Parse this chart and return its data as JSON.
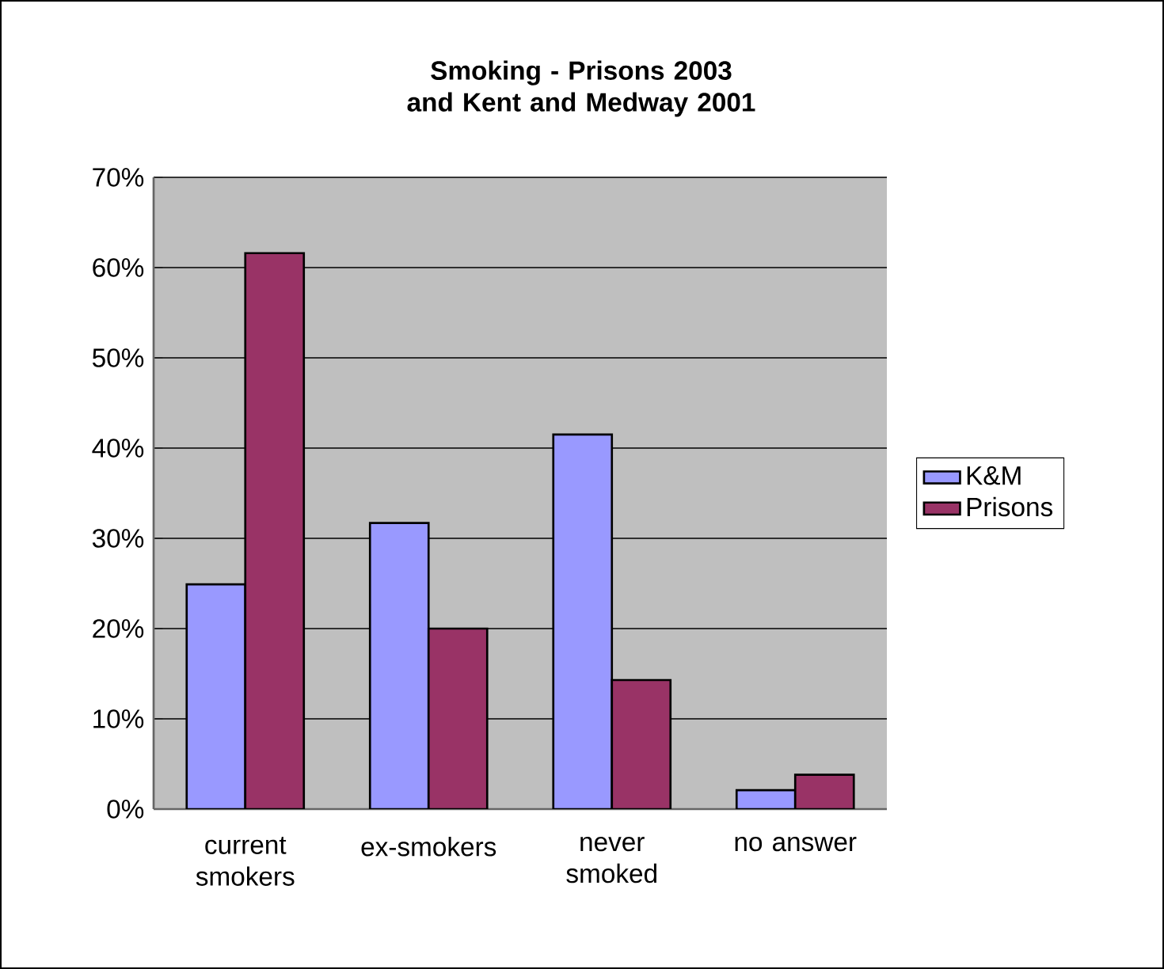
{
  "chart_data": {
    "type": "bar",
    "title": "Smoking - Prisons 2003\nand Kent and Medway 2001",
    "categories": [
      "current smokers",
      "ex-smokers",
      "never smoked",
      "no answer"
    ],
    "series": [
      {
        "name": "K&M",
        "color": "#9999ff",
        "values": [
          24.9,
          31.7,
          41.5,
          2.1
        ]
      },
      {
        "name": "Prisons",
        "color": "#993366",
        "values": [
          61.6,
          20.0,
          14.3,
          3.8
        ]
      }
    ],
    "ylim": [
      0,
      70
    ],
    "yticks": [
      {
        "value": 0,
        "label": "0%"
      },
      {
        "value": 10,
        "label": "10%"
      },
      {
        "value": 20,
        "label": "20%"
      },
      {
        "value": 30,
        "label": "30%"
      },
      {
        "value": 40,
        "label": "40%"
      },
      {
        "value": 50,
        "label": "50%"
      },
      {
        "value": 60,
        "label": "60%"
      },
      {
        "value": 70,
        "label": "70%"
      }
    ],
    "grid": "y",
    "legend": "right"
  }
}
